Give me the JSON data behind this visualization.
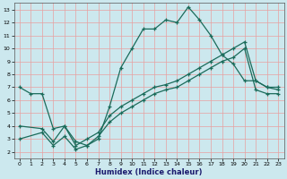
{
  "xlabel": "Humidex (Indice chaleur)",
  "bg_color": "#cce8ee",
  "grid_color": "#e8a0a0",
  "line_color": "#1a6b5a",
  "xlim": [
    -0.5,
    23.5
  ],
  "ylim": [
    1.5,
    13.5
  ],
  "xticks": [
    0,
    1,
    2,
    3,
    4,
    5,
    6,
    7,
    8,
    9,
    10,
    11,
    12,
    13,
    14,
    15,
    16,
    17,
    18,
    19,
    20,
    21,
    22,
    23
  ],
  "yticks": [
    2,
    3,
    4,
    5,
    6,
    7,
    8,
    9,
    10,
    11,
    12,
    13
  ],
  "line1_x": [
    0,
    1,
    2,
    3,
    4,
    5,
    6,
    7,
    8,
    9,
    10,
    11,
    12,
    13,
    14,
    15,
    16,
    17,
    18,
    19,
    20,
    21,
    22,
    23
  ],
  "line1_y": [
    7,
    6.5,
    6.5,
    3.8,
    4.0,
    2.8,
    2.5,
    3.0,
    5.5,
    8.5,
    10.0,
    11.5,
    11.5,
    12.2,
    12.0,
    13.2,
    12.2,
    11.0,
    9.5,
    8.8,
    7.5,
    7.5,
    7.0,
    7.0
  ],
  "line2_x": [
    0,
    2,
    3,
    4,
    5,
    6,
    7,
    8,
    9,
    10,
    11,
    12,
    13,
    14,
    15,
    16,
    17,
    18,
    19,
    20,
    21,
    22,
    23
  ],
  "line2_y": [
    4.0,
    3.8,
    2.8,
    4.0,
    2.5,
    3.0,
    3.5,
    4.8,
    5.5,
    6.0,
    6.5,
    7.0,
    7.2,
    7.5,
    8.0,
    8.5,
    9.0,
    9.5,
    10.0,
    10.5,
    7.5,
    7.0,
    6.8
  ],
  "line3_x": [
    0,
    2,
    3,
    4,
    5,
    6,
    7,
    8,
    9,
    10,
    11,
    12,
    13,
    14,
    15,
    16,
    17,
    18,
    19,
    20,
    21,
    22,
    23
  ],
  "line3_y": [
    3.0,
    3.5,
    2.5,
    3.2,
    2.2,
    2.5,
    3.2,
    4.3,
    5.0,
    5.5,
    6.0,
    6.5,
    6.8,
    7.0,
    7.5,
    8.0,
    8.5,
    9.0,
    9.3,
    10.0,
    6.8,
    6.5,
    6.5
  ]
}
